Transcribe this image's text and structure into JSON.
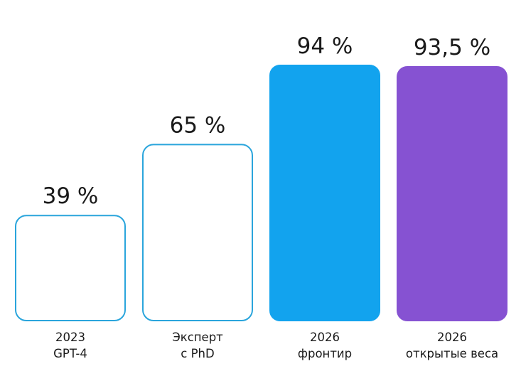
{
  "chart_data": {
    "type": "bar",
    "categories": [
      [
        "2023",
        "GPT-4"
      ],
      [
        "Эксперт",
        "с PhD"
      ],
      [
        "2026",
        "фронтир"
      ],
      [
        "2026",
        "открытые веса"
      ]
    ],
    "values": [
      39,
      65,
      94,
      93.5
    ],
    "value_labels": [
      "39 %",
      "65 %",
      "94 %",
      "93,5 %"
    ],
    "bar_styles": [
      {
        "style": "outline",
        "color": "#2aa5dc"
      },
      {
        "style": "outline",
        "color": "#2aa5dc"
      },
      {
        "style": "filled",
        "color": "#12a3ee"
      },
      {
        "style": "filled",
        "color": "#8652d2"
      }
    ],
    "title": "",
    "xlabel": "",
    "ylabel": "",
    "ylim": [
      0,
      100
    ],
    "grid": false,
    "legend": "none"
  }
}
